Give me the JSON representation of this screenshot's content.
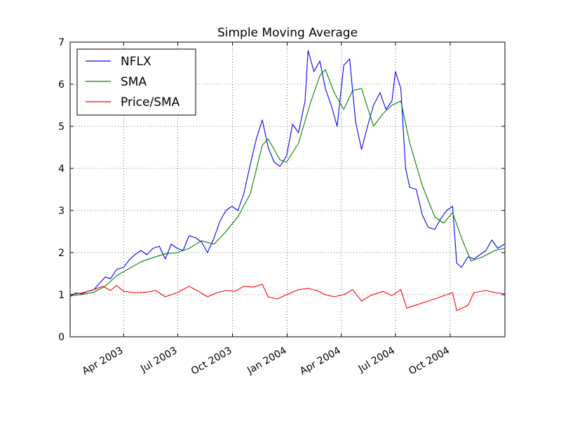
{
  "chart_data": {
    "type": "line",
    "title": "Simple Moving Average",
    "xlabel": "",
    "ylabel": "",
    "x_range": [
      "2003-01-01",
      "2005-01-01"
    ],
    "ylim": [
      0,
      7
    ],
    "yticks": [
      0,
      1,
      2,
      3,
      4,
      5,
      6,
      7
    ],
    "xticks": [
      {
        "date": "2003-04-01",
        "label": "Apr 2003"
      },
      {
        "date": "2003-07-01",
        "label": "Jul 2003"
      },
      {
        "date": "2003-10-01",
        "label": "Oct 2003"
      },
      {
        "date": "2004-01-01",
        "label": "Jan 2004"
      },
      {
        "date": "2004-04-01",
        "label": "Apr 2004"
      },
      {
        "date": "2004-07-01",
        "label": "Jul 2004"
      },
      {
        "date": "2004-10-01",
        "label": "Oct 2004"
      }
    ],
    "grid": true,
    "legend_position": "top-left",
    "series": [
      {
        "name": "NFLX",
        "color": "#0000ff",
        "points": [
          [
            "2003-01-02",
            0.96
          ],
          [
            "2003-01-10",
            1.04
          ],
          [
            "2003-01-20",
            1.02
          ],
          [
            "2003-01-31",
            1.08
          ],
          [
            "2003-02-10",
            1.12
          ],
          [
            "2003-02-20",
            1.28
          ],
          [
            "2003-03-01",
            1.42
          ],
          [
            "2003-03-10",
            1.38
          ],
          [
            "2003-03-20",
            1.6
          ],
          [
            "2003-04-01",
            1.65
          ],
          [
            "2003-04-10",
            1.82
          ],
          [
            "2003-04-20",
            1.95
          ],
          [
            "2003-04-30",
            2.05
          ],
          [
            "2003-05-10",
            1.95
          ],
          [
            "2003-05-20",
            2.1
          ],
          [
            "2003-05-31",
            2.15
          ],
          [
            "2003-06-10",
            1.85
          ],
          [
            "2003-06-20",
            2.2
          ],
          [
            "2003-06-30",
            2.1
          ],
          [
            "2003-07-10",
            2.05
          ],
          [
            "2003-07-20",
            2.4
          ],
          [
            "2003-07-31",
            2.35
          ],
          [
            "2003-08-10",
            2.25
          ],
          [
            "2003-08-20",
            2.0
          ],
          [
            "2003-08-31",
            2.35
          ],
          [
            "2003-09-10",
            2.75
          ],
          [
            "2003-09-20",
            3.0
          ],
          [
            "2003-09-30",
            3.1
          ],
          [
            "2003-10-10",
            3.0
          ],
          [
            "2003-10-20",
            3.4
          ],
          [
            "2003-10-31",
            4.1
          ],
          [
            "2003-11-10",
            4.7
          ],
          [
            "2003-11-20",
            5.15
          ],
          [
            "2003-11-30",
            4.5
          ],
          [
            "2003-12-10",
            4.15
          ],
          [
            "2003-12-20",
            4.05
          ],
          [
            "2003-12-31",
            4.3
          ],
          [
            "2004-01-10",
            5.05
          ],
          [
            "2004-01-20",
            4.85
          ],
          [
            "2004-01-31",
            5.6
          ],
          [
            "2004-02-05",
            6.8
          ],
          [
            "2004-02-15",
            6.3
          ],
          [
            "2004-02-25",
            6.55
          ],
          [
            "2004-03-05",
            5.9
          ],
          [
            "2004-03-15",
            5.5
          ],
          [
            "2004-03-25",
            5.0
          ],
          [
            "2004-04-05",
            6.45
          ],
          [
            "2004-04-15",
            6.6
          ],
          [
            "2004-04-25",
            5.1
          ],
          [
            "2004-05-05",
            4.45
          ],
          [
            "2004-05-15",
            5.0
          ],
          [
            "2004-05-25",
            5.5
          ],
          [
            "2004-06-05",
            5.8
          ],
          [
            "2004-06-15",
            5.4
          ],
          [
            "2004-06-25",
            5.6
          ],
          [
            "2004-07-01",
            6.3
          ],
          [
            "2004-07-10",
            5.9
          ],
          [
            "2004-07-18",
            4.0
          ],
          [
            "2004-07-25",
            3.55
          ],
          [
            "2004-08-05",
            3.5
          ],
          [
            "2004-08-15",
            2.9
          ],
          [
            "2004-08-25",
            2.6
          ],
          [
            "2004-09-05",
            2.55
          ],
          [
            "2004-09-15",
            2.8
          ],
          [
            "2004-09-25",
            3.0
          ],
          [
            "2004-10-05",
            3.1
          ],
          [
            "2004-10-12",
            1.75
          ],
          [
            "2004-10-20",
            1.65
          ],
          [
            "2004-10-31",
            1.9
          ],
          [
            "2004-11-10",
            1.85
          ],
          [
            "2004-11-20",
            1.95
          ],
          [
            "2004-11-30",
            2.05
          ],
          [
            "2004-12-10",
            2.3
          ],
          [
            "2004-12-20",
            2.1
          ],
          [
            "2004-12-31",
            2.2
          ]
        ]
      },
      {
        "name": "SMA",
        "color": "#008000",
        "points": [
          [
            "2003-01-02",
            0.98
          ],
          [
            "2003-01-20",
            1.0
          ],
          [
            "2003-02-10",
            1.06
          ],
          [
            "2003-03-01",
            1.2
          ],
          [
            "2003-03-20",
            1.45
          ],
          [
            "2003-04-10",
            1.62
          ],
          [
            "2003-04-30",
            1.78
          ],
          [
            "2003-05-20",
            1.88
          ],
          [
            "2003-06-10",
            1.97
          ],
          [
            "2003-06-30",
            2.0
          ],
          [
            "2003-07-20",
            2.1
          ],
          [
            "2003-08-10",
            2.28
          ],
          [
            "2003-08-31",
            2.2
          ],
          [
            "2003-09-20",
            2.5
          ],
          [
            "2003-10-10",
            2.85
          ],
          [
            "2003-10-31",
            3.4
          ],
          [
            "2003-11-20",
            4.55
          ],
          [
            "2003-11-30",
            4.7
          ],
          [
            "2003-12-20",
            4.2
          ],
          [
            "2003-12-31",
            4.15
          ],
          [
            "2004-01-20",
            4.6
          ],
          [
            "2004-02-10",
            5.6
          ],
          [
            "2004-02-25",
            6.2
          ],
          [
            "2004-03-05",
            6.35
          ],
          [
            "2004-03-20",
            5.8
          ],
          [
            "2004-04-05",
            5.4
          ],
          [
            "2004-04-20",
            5.85
          ],
          [
            "2004-05-05",
            5.9
          ],
          [
            "2004-05-25",
            5.0
          ],
          [
            "2004-06-10",
            5.3
          ],
          [
            "2004-06-25",
            5.5
          ],
          [
            "2004-07-10",
            5.6
          ],
          [
            "2004-07-25",
            4.6
          ],
          [
            "2004-08-15",
            3.6
          ],
          [
            "2004-09-05",
            2.85
          ],
          [
            "2004-09-20",
            2.7
          ],
          [
            "2004-10-05",
            2.95
          ],
          [
            "2004-10-20",
            2.35
          ],
          [
            "2004-11-05",
            1.8
          ],
          [
            "2004-11-25",
            1.9
          ],
          [
            "2004-12-15",
            2.05
          ],
          [
            "2004-12-31",
            2.1
          ]
        ]
      },
      {
        "name": "Price/SMA",
        "color": "#ff0000",
        "points": [
          [
            "2003-01-02",
            1.0
          ],
          [
            "2003-01-20",
            1.04
          ],
          [
            "2003-02-10",
            1.12
          ],
          [
            "2003-02-25",
            1.2
          ],
          [
            "2003-03-10",
            1.1
          ],
          [
            "2003-03-20",
            1.22
          ],
          [
            "2003-04-01",
            1.08
          ],
          [
            "2003-04-20",
            1.05
          ],
          [
            "2003-05-10",
            1.06
          ],
          [
            "2003-05-25",
            1.1
          ],
          [
            "2003-06-10",
            0.95
          ],
          [
            "2003-06-30",
            1.05
          ],
          [
            "2003-07-20",
            1.2
          ],
          [
            "2003-08-05",
            1.08
          ],
          [
            "2003-08-20",
            0.95
          ],
          [
            "2003-09-05",
            1.05
          ],
          [
            "2003-09-20",
            1.1
          ],
          [
            "2003-10-05",
            1.08
          ],
          [
            "2003-10-20",
            1.2
          ],
          [
            "2003-11-05",
            1.18
          ],
          [
            "2003-11-20",
            1.25
          ],
          [
            "2003-11-30",
            0.95
          ],
          [
            "2003-12-15",
            0.9
          ],
          [
            "2003-12-31",
            1.0
          ],
          [
            "2004-01-20",
            1.12
          ],
          [
            "2004-02-05",
            1.15
          ],
          [
            "2004-02-20",
            1.1
          ],
          [
            "2004-03-05",
            1.0
          ],
          [
            "2004-03-20",
            0.95
          ],
          [
            "2004-04-05",
            1.0
          ],
          [
            "2004-04-20",
            1.12
          ],
          [
            "2004-05-05",
            0.85
          ],
          [
            "2004-05-20",
            0.98
          ],
          [
            "2004-06-10",
            1.08
          ],
          [
            "2004-06-25",
            0.98
          ],
          [
            "2004-07-10",
            1.12
          ],
          [
            "2004-07-20",
            0.68
          ],
          [
            "2004-08-10",
            0.78
          ],
          [
            "2004-09-05",
            0.9
          ],
          [
            "2004-09-25",
            1.0
          ],
          [
            "2004-10-05",
            1.05
          ],
          [
            "2004-10-12",
            0.62
          ],
          [
            "2004-10-31",
            0.75
          ],
          [
            "2004-11-10",
            1.05
          ],
          [
            "2004-11-30",
            1.1
          ],
          [
            "2004-12-15",
            1.05
          ],
          [
            "2004-12-31",
            1.02
          ]
        ]
      }
    ]
  }
}
